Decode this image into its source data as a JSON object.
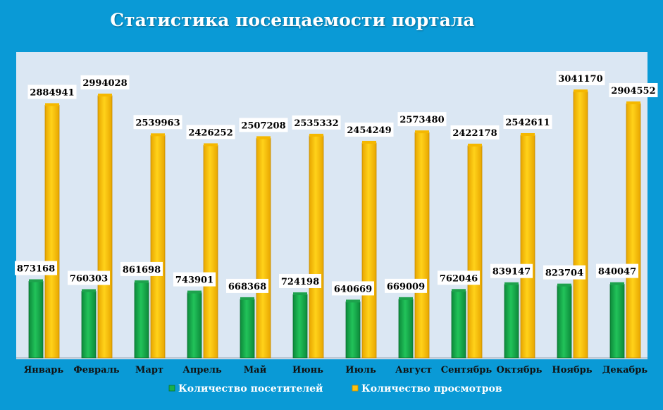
{
  "chart_data": {
    "type": "bar",
    "title": "Статистика посещаемости портала",
    "categories": [
      "Январь",
      "Февраль",
      "Март",
      "Апрель",
      "Май",
      "Июнь",
      "Июль",
      "Август",
      "Сентябрь",
      "Октябрь",
      "Ноябрь",
      "Декабрь"
    ],
    "series": [
      {
        "name": "Количество посетителей",
        "color": "#19b04c",
        "values": [
          873168,
          760303,
          861698,
          743901,
          668368,
          724198,
          640669,
          669009,
          762046,
          839147,
          823704,
          840047
        ]
      },
      {
        "name": "Количество просмотров",
        "color": "#ffc20e",
        "values": [
          2884941,
          2994028,
          2539963,
          2426252,
          2507208,
          2535332,
          2454249,
          2573480,
          2422178,
          2542611,
          3041170,
          2904552
        ]
      }
    ],
    "ylim": [
      0,
      3041170
    ],
    "legend": "bottom",
    "grid": false,
    "data_labels": true,
    "colors": {
      "background": "#0a9ad6",
      "plot_background": "#dbe7f3"
    }
  }
}
